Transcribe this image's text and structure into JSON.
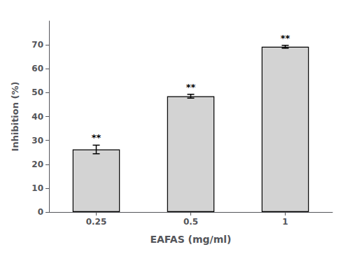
{
  "chart_data": {
    "type": "bar",
    "categories": [
      "0.25",
      "0.5",
      "1"
    ],
    "values": [
      26.2,
      48.5,
      69.2
    ],
    "errors": [
      1.8,
      0.8,
      0.6
    ],
    "color": "#d3d3d3",
    "xlabel": "EAFAS (mg/ml)",
    "ylabel": "Inhibition (%)",
    "ylim": [
      0,
      80
    ],
    "yticks": [
      0,
      10,
      20,
      30,
      40,
      50,
      60,
      70
    ],
    "annotations": [
      "**",
      "**",
      "**"
    ],
    "grid": false
  }
}
